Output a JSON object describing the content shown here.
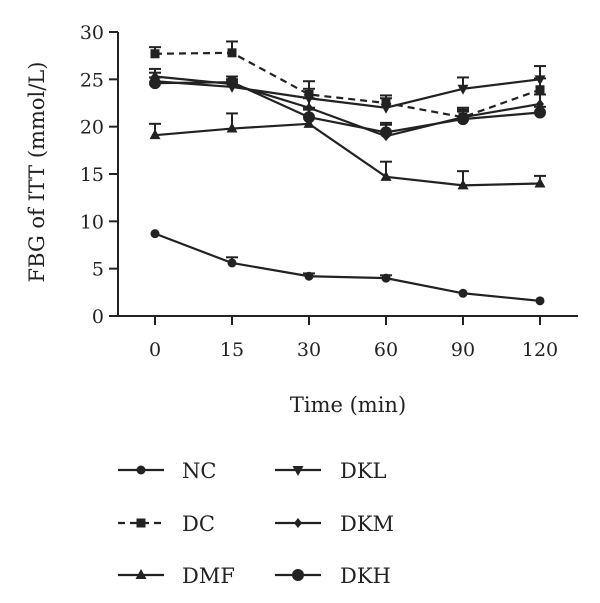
{
  "chart_data": {
    "type": "line",
    "xlabel": "Time (min)",
    "ylabel": "FBG of ITT (mmol/L)",
    "categories": [
      "0",
      "15",
      "30",
      "60",
      "90",
      "120"
    ],
    "ylim": [
      0,
      30
    ],
    "yticks": [
      0,
      5,
      10,
      15,
      20,
      25,
      30
    ],
    "grid": false,
    "legend_position": "bottom",
    "series": [
      {
        "name": "NC",
        "values": [
          8.7,
          5.6,
          4.2,
          4.0,
          2.4,
          1.6
        ],
        "errors": [
          0,
          0.6,
          0.3,
          0.3,
          0,
          0
        ],
        "marker": "circle",
        "dash": false
      },
      {
        "name": "DC",
        "values": [
          27.7,
          27.8,
          23.4,
          22.5,
          21.0,
          23.9
        ],
        "errors": [
          0.7,
          1.2,
          1.4,
          0.8,
          0.8,
          1.2
        ],
        "marker": "square",
        "dash": true
      },
      {
        "name": "DMF",
        "values": [
          19.1,
          19.8,
          20.3,
          14.7,
          13.8,
          14.0
        ],
        "errors": [
          1.2,
          1.6,
          1.5,
          1.6,
          1.5,
          0.8
        ],
        "marker": "triangle",
        "dash": false
      },
      {
        "name": "DKL",
        "values": [
          24.8,
          24.2,
          23.0,
          22.0,
          24.0,
          25.0
        ],
        "errors": [
          0.9,
          0.8,
          1.0,
          1.0,
          1.2,
          1.4
        ],
        "marker": "tri-down",
        "dash": false
      },
      {
        "name": "DKM",
        "values": [
          25.3,
          24.5,
          22.0,
          19.0,
          21.0,
          22.4
        ],
        "errors": [
          0.8,
          0.8,
          1.0,
          1.2,
          1.0,
          1.0
        ],
        "marker": "diamond",
        "dash": false
      },
      {
        "name": "DKH",
        "values": [
          24.6,
          24.7,
          21.0,
          19.4,
          20.8,
          21.5
        ],
        "errors": [
          0.6,
          0.6,
          1.0,
          1.0,
          0.8,
          0.6
        ],
        "marker": "circle-lg",
        "dash": false
      }
    ]
  }
}
